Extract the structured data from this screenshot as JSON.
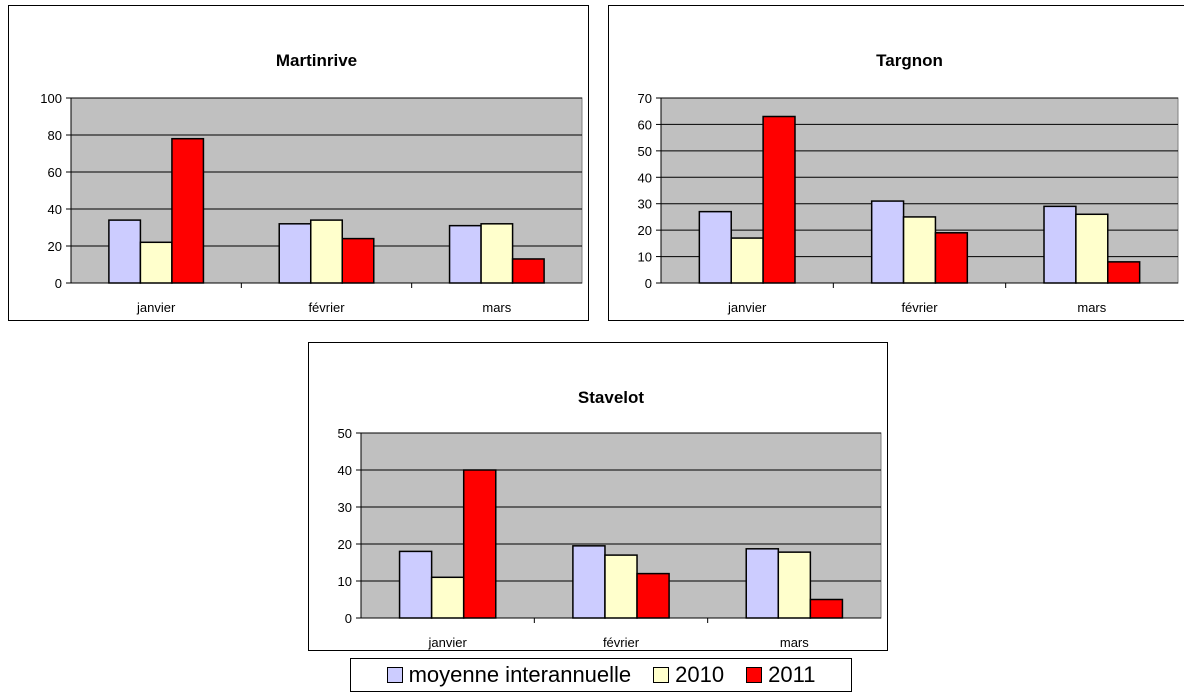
{
  "chart_data": [
    {
      "type": "bar",
      "title": "Martinrive",
      "categories": [
        "janvier",
        "février",
        "mars"
      ],
      "series": [
        {
          "name": "moyenne interannuelle",
          "values": [
            34,
            32,
            31
          ]
        },
        {
          "name": "2010",
          "values": [
            22,
            34,
            32
          ]
        },
        {
          "name": "2011",
          "values": [
            78,
            24,
            13
          ]
        }
      ],
      "ylim": [
        0,
        100
      ],
      "yticks": [
        0,
        20,
        40,
        60,
        80,
        100
      ],
      "grid": true,
      "legend": "bottom"
    },
    {
      "type": "bar",
      "title": "Targnon",
      "categories": [
        "janvier",
        "février",
        "mars"
      ],
      "series": [
        {
          "name": "moyenne interannuelle",
          "values": [
            27,
            31,
            29
          ]
        },
        {
          "name": "2010",
          "values": [
            17,
            25,
            26
          ]
        },
        {
          "name": "2011",
          "values": [
            63,
            19,
            8
          ]
        }
      ],
      "ylim": [
        0,
        70
      ],
      "yticks": [
        0,
        10,
        20,
        30,
        40,
        50,
        60,
        70
      ],
      "grid": true,
      "legend": "bottom"
    },
    {
      "type": "bar",
      "title": "Stavelot",
      "categories": [
        "janvier",
        "février",
        "mars"
      ],
      "series": [
        {
          "name": "moyenne interannuelle",
          "values": [
            18,
            19.5,
            18.7
          ]
        },
        {
          "name": "2010",
          "values": [
            11,
            17,
            17.8
          ]
        },
        {
          "name": "2011",
          "values": [
            40,
            12,
            5
          ]
        }
      ],
      "ylim": [
        0,
        50
      ],
      "yticks": [
        0,
        10,
        20,
        30,
        40,
        50
      ],
      "grid": true,
      "legend": "bottom"
    }
  ],
  "legend": {
    "items": [
      {
        "label": "moyenne interannuelle",
        "color": "#ccccff"
      },
      {
        "label": "2010",
        "color": "#ffffcc"
      },
      {
        "label": "2011",
        "color": "#ff0000"
      }
    ]
  },
  "colors": {
    "plot_background": "#c0c0c0",
    "series": [
      "#ccccff",
      "#ffffcc",
      "#ff0000"
    ]
  }
}
